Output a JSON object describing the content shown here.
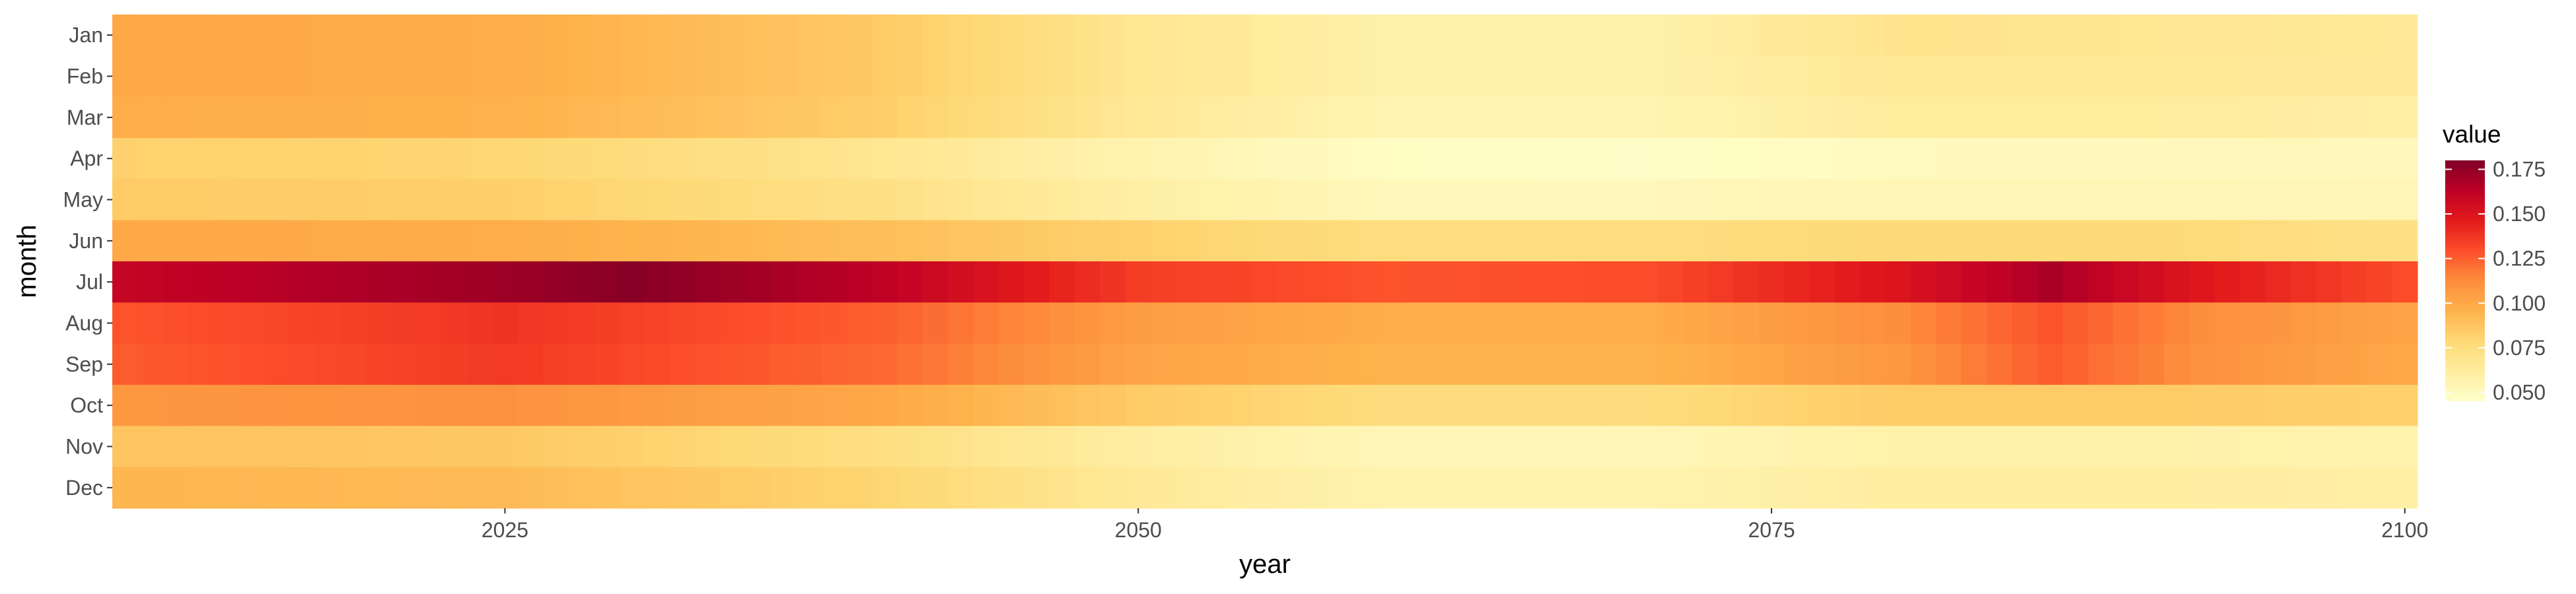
{
  "chart_data": {
    "type": "heatmap",
    "title": "",
    "xlabel": "year",
    "ylabel": "month",
    "x_range": [
      2010,
      2100
    ],
    "x_ticks": [
      2025,
      2050,
      2075,
      2100
    ],
    "months": [
      "Jan",
      "Feb",
      "Mar",
      "Apr",
      "May",
      "Jun",
      "Jul",
      "Aug",
      "Sep",
      "Oct",
      "Nov",
      "Dec"
    ],
    "legend": {
      "title": "value",
      "position": "right",
      "range": [
        0.045,
        0.18
      ],
      "ticks": [
        0.05,
        0.075,
        0.1,
        0.125,
        0.15,
        0.175
      ],
      "tick_labels": [
        "0.050",
        "0.075",
        "0.100",
        "0.125",
        "0.150",
        "0.175"
      ]
    },
    "colors": {
      "panel_bg": "#ebebeb",
      "scale": [
        "#ffffcc",
        "#ffeda0",
        "#fed976",
        "#feb24c",
        "#fd8d3c",
        "#fc4e2a",
        "#e31a1c",
        "#bd0026",
        "#800026"
      ]
    },
    "month_profiles": [
      {
        "month": "Jan",
        "years": [
          2010,
          2025,
          2040,
          2050,
          2060,
          2070,
          2080,
          2090,
          2100
        ],
        "values": [
          0.1,
          0.098,
          0.085,
          0.068,
          0.058,
          0.058,
          0.07,
          0.068,
          0.065
        ]
      },
      {
        "month": "Feb",
        "years": [
          2010,
          2025,
          2040,
          2050,
          2060,
          2070,
          2080,
          2090,
          2100
        ],
        "values": [
          0.1,
          0.098,
          0.085,
          0.068,
          0.058,
          0.058,
          0.066,
          0.066,
          0.064
        ]
      },
      {
        "month": "Mar",
        "years": [
          2010,
          2025,
          2040,
          2050,
          2060,
          2070,
          2080,
          2090,
          2100
        ],
        "values": [
          0.098,
          0.096,
          0.083,
          0.066,
          0.055,
          0.055,
          0.063,
          0.063,
          0.06
        ]
      },
      {
        "month": "Apr",
        "years": [
          2010,
          2025,
          2040,
          2050,
          2060,
          2070,
          2080,
          2090,
          2100
        ],
        "values": [
          0.082,
          0.08,
          0.068,
          0.056,
          0.048,
          0.047,
          0.05,
          0.051,
          0.052
        ]
      },
      {
        "month": "May",
        "years": [
          2010,
          2025,
          2040,
          2050,
          2060,
          2070,
          2080,
          2090,
          2100
        ],
        "values": [
          0.085,
          0.083,
          0.072,
          0.06,
          0.052,
          0.052,
          0.054,
          0.054,
          0.054
        ]
      },
      {
        "month": "Jun",
        "years": [
          2010,
          2025,
          2040,
          2050,
          2060,
          2070,
          2080,
          2090,
          2100
        ],
        "values": [
          0.1,
          0.098,
          0.09,
          0.082,
          0.075,
          0.075,
          0.078,
          0.078,
          0.072
        ]
      },
      {
        "month": "Jul",
        "years": [
          2010,
          2025,
          2030,
          2040,
          2050,
          2060,
          2070,
          2080,
          2086,
          2092,
          2100
        ],
        "values": [
          0.16,
          0.172,
          0.178,
          0.162,
          0.135,
          0.128,
          0.13,
          0.15,
          0.168,
          0.148,
          0.13
        ]
      },
      {
        "month": "Aug",
        "years": [
          2010,
          2025,
          2040,
          2050,
          2060,
          2070,
          2080,
          2086,
          2092,
          2100
        ],
        "values": [
          0.128,
          0.138,
          0.125,
          0.105,
          0.098,
          0.098,
          0.112,
          0.128,
          0.112,
          0.102
        ]
      },
      {
        "month": "Sep",
        "years": [
          2010,
          2025,
          2040,
          2050,
          2060,
          2070,
          2080,
          2086,
          2092,
          2100
        ],
        "values": [
          0.126,
          0.136,
          0.122,
          0.102,
          0.095,
          0.095,
          0.108,
          0.126,
          0.11,
          0.1
        ]
      },
      {
        "month": "Oct",
        "years": [
          2010,
          2025,
          2040,
          2050,
          2060,
          2070,
          2080,
          2090,
          2100
        ],
        "values": [
          0.108,
          0.11,
          0.1,
          0.085,
          0.076,
          0.076,
          0.085,
          0.085,
          0.082
        ]
      },
      {
        "month": "Nov",
        "years": [
          2010,
          2025,
          2040,
          2050,
          2060,
          2070,
          2080,
          2090,
          2100
        ],
        "values": [
          0.088,
          0.086,
          0.074,
          0.061,
          0.053,
          0.053,
          0.058,
          0.058,
          0.057
        ]
      },
      {
        "month": "Dec",
        "years": [
          2010,
          2025,
          2040,
          2050,
          2060,
          2070,
          2080,
          2090,
          2100
        ],
        "values": [
          0.094,
          0.092,
          0.08,
          0.065,
          0.056,
          0.056,
          0.062,
          0.062,
          0.06
        ]
      }
    ]
  }
}
